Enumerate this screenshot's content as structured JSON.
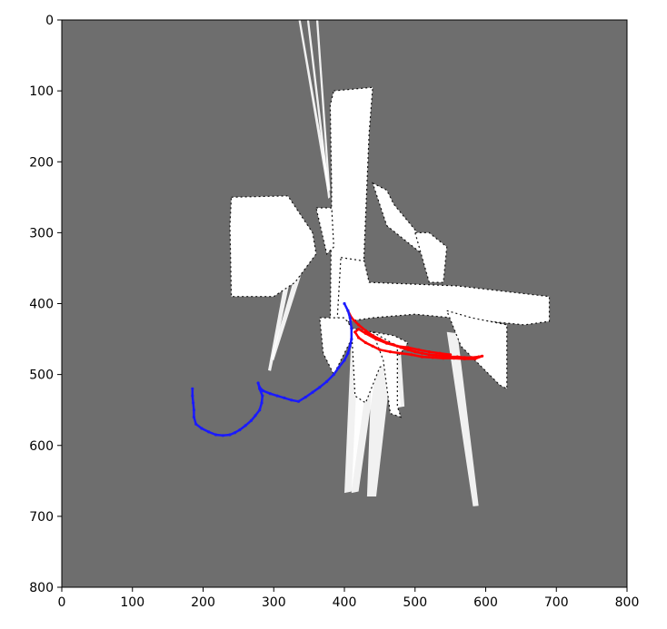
{
  "chart_data": {
    "type": "scatter",
    "title": "",
    "xlabel": "",
    "ylabel": "",
    "xlim": [
      0,
      800
    ],
    "ylim": [
      800,
      0
    ],
    "y_inverted": true,
    "x_ticks": [
      0,
      100,
      200,
      300,
      400,
      500,
      600,
      700,
      800
    ],
    "y_ticks": [
      0,
      100,
      200,
      300,
      400,
      500,
      600,
      700,
      800
    ],
    "grid": false,
    "legend": "none",
    "background": {
      "unknown_color": "#6e6e6e",
      "free_color": "#ffffff",
      "occupied_color": "#111111",
      "free_space_regions": [
        [
          [
            385,
            100
          ],
          [
            440,
            95
          ],
          [
            435,
            160
          ],
          [
            425,
            400
          ],
          [
            410,
            420
          ],
          [
            395,
            440
          ],
          [
            380,
            430
          ],
          [
            382,
            240
          ],
          [
            380,
            120
          ]
        ],
        [
          [
            240,
            250
          ],
          [
            320,
            248
          ],
          [
            355,
            300
          ],
          [
            360,
            330
          ],
          [
            330,
            370
          ],
          [
            300,
            390
          ],
          [
            240,
            390
          ],
          [
            238,
            290
          ]
        ],
        [
          [
            360,
            265
          ],
          [
            382,
            265
          ],
          [
            385,
            320
          ],
          [
            375,
            330
          ]
        ],
        [
          [
            395,
            335
          ],
          [
            428,
            340
          ],
          [
            435,
            370
          ],
          [
            560,
            375
          ],
          [
            690,
            390
          ],
          [
            690,
            425
          ],
          [
            655,
            430
          ],
          [
            500,
            415
          ],
          [
            440,
            420
          ],
          [
            405,
            425
          ],
          [
            390,
            420
          ]
        ],
        [
          [
            365,
            420
          ],
          [
            400,
            420
          ],
          [
            415,
            440
          ],
          [
            400,
            470
          ],
          [
            385,
            500
          ],
          [
            370,
            470
          ]
        ],
        [
          [
            410,
            435
          ],
          [
            440,
            440
          ],
          [
            470,
            445
          ],
          [
            490,
            455
          ],
          [
            480,
            470
          ],
          [
            450,
            490
          ],
          [
            430,
            540
          ],
          [
            415,
            530
          ]
        ],
        [
          [
            440,
            440
          ],
          [
            475,
            460
          ],
          [
            475,
            545
          ],
          [
            480,
            560
          ],
          [
            465,
            555
          ],
          [
            455,
            480
          ]
        ],
        [
          [
            545,
            410
          ],
          [
            580,
            420
          ],
          [
            630,
            430
          ],
          [
            630,
            520
          ],
          [
            620,
            515
          ],
          [
            565,
            460
          ]
        ],
        [
          [
            440,
            230
          ],
          [
            460,
            240
          ],
          [
            470,
            260
          ],
          [
            520,
            320
          ],
          [
            510,
            330
          ],
          [
            460,
            290
          ]
        ],
        [
          [
            500,
            300
          ],
          [
            520,
            300
          ],
          [
            545,
            320
          ],
          [
            540,
            370
          ],
          [
            520,
            370
          ]
        ]
      ],
      "beams": [
        [
          [
            335,
            0
          ],
          [
            338,
            0
          ],
          [
            380,
            240
          ],
          [
            376,
            242
          ]
        ],
        [
          [
            360,
            0
          ],
          [
            363,
            0
          ],
          [
            380,
            240
          ],
          [
            377,
            240
          ]
        ],
        [
          [
            347,
            0
          ],
          [
            350,
            0
          ],
          [
            380,
            250
          ],
          [
            377,
            252
          ]
        ],
        [
          [
            315,
            370
          ],
          [
            322,
            372
          ],
          [
            296,
            495
          ],
          [
            292,
            494
          ]
        ],
        [
          [
            330,
            360
          ],
          [
            338,
            362
          ],
          [
            300,
            480
          ],
          [
            296,
            478
          ]
        ],
        [
          [
            410,
            440
          ],
          [
            440,
            450
          ],
          [
            410,
            665
          ],
          [
            400,
            667
          ]
        ],
        [
          [
            420,
            450
          ],
          [
            450,
            455
          ],
          [
            420,
            665
          ],
          [
            410,
            667
          ]
        ],
        [
          [
            440,
            455
          ],
          [
            470,
            458
          ],
          [
            445,
            672
          ],
          [
            432,
            672
          ]
        ],
        [
          [
            455,
            460
          ],
          [
            470,
            462
          ],
          [
            480,
            545
          ],
          [
            470,
            546
          ]
        ],
        [
          [
            465,
            470
          ],
          [
            480,
            470
          ],
          [
            485,
            545
          ],
          [
            468,
            548
          ]
        ],
        [
          [
            545,
            440
          ],
          [
            560,
            442
          ],
          [
            590,
            685
          ],
          [
            582,
            686
          ]
        ],
        [
          [
            560,
            430
          ],
          [
            575,
            432
          ],
          [
            630,
            510
          ],
          [
            622,
            515
          ]
        ]
      ]
    },
    "series": [
      {
        "color": "#ff0000",
        "points": [
          [
            405,
            410
          ],
          [
            410,
            420
          ],
          [
            420,
            430
          ],
          [
            430,
            438
          ],
          [
            440,
            445
          ],
          [
            450,
            450
          ],
          [
            460,
            455
          ],
          [
            470,
            458
          ],
          [
            480,
            462
          ],
          [
            490,
            465
          ],
          [
            500,
            468
          ],
          [
            510,
            470
          ],
          [
            520,
            472
          ],
          [
            530,
            473
          ],
          [
            540,
            474
          ],
          [
            550,
            475
          ],
          [
            560,
            475
          ],
          [
            570,
            476
          ],
          [
            580,
            476
          ],
          [
            590,
            475
          ],
          [
            595,
            474
          ],
          [
            585,
            478
          ],
          [
            570,
            478
          ],
          [
            555,
            477
          ],
          [
            540,
            477
          ],
          [
            525,
            476
          ],
          [
            510,
            475
          ],
          [
            495,
            472
          ],
          [
            480,
            470
          ],
          [
            465,
            468
          ],
          [
            450,
            465
          ],
          [
            440,
            460
          ],
          [
            430,
            455
          ],
          [
            420,
            448
          ],
          [
            415,
            440
          ],
          [
            420,
            436
          ],
          [
            430,
            442
          ],
          [
            445,
            450
          ],
          [
            460,
            456
          ],
          [
            475,
            460
          ],
          [
            490,
            462
          ],
          [
            505,
            465
          ],
          [
            520,
            468
          ],
          [
            535,
            470
          ],
          [
            550,
            472
          ]
        ]
      },
      {
        "color": "#1a1aff",
        "points": [
          [
            400,
            400
          ],
          [
            405,
            410
          ],
          [
            408,
            420
          ],
          [
            410,
            435
          ],
          [
            410,
            450
          ],
          [
            408,
            460
          ],
          [
            405,
            470
          ],
          [
            400,
            480
          ],
          [
            392,
            490
          ],
          [
            385,
            500
          ],
          [
            375,
            510
          ],
          [
            365,
            518
          ],
          [
            355,
            525
          ],
          [
            345,
            532
          ],
          [
            335,
            538
          ],
          [
            325,
            536
          ],
          [
            315,
            533
          ],
          [
            305,
            530
          ],
          [
            295,
            527
          ],
          [
            285,
            523
          ],
          [
            280,
            518
          ],
          [
            278,
            512
          ],
          [
            280,
            520
          ],
          [
            284,
            530
          ],
          [
            283,
            540
          ],
          [
            280,
            550
          ],
          [
            274,
            558
          ],
          [
            268,
            565
          ],
          [
            260,
            572
          ],
          [
            252,
            578
          ],
          [
            245,
            582
          ],
          [
            238,
            585
          ],
          [
            228,
            586
          ],
          [
            218,
            585
          ],
          [
            208,
            581
          ],
          [
            198,
            576
          ],
          [
            190,
            570
          ],
          [
            187,
            560
          ],
          [
            187,
            550
          ],
          [
            186,
            540
          ],
          [
            185,
            530
          ],
          [
            185,
            520
          ]
        ]
      }
    ]
  }
}
